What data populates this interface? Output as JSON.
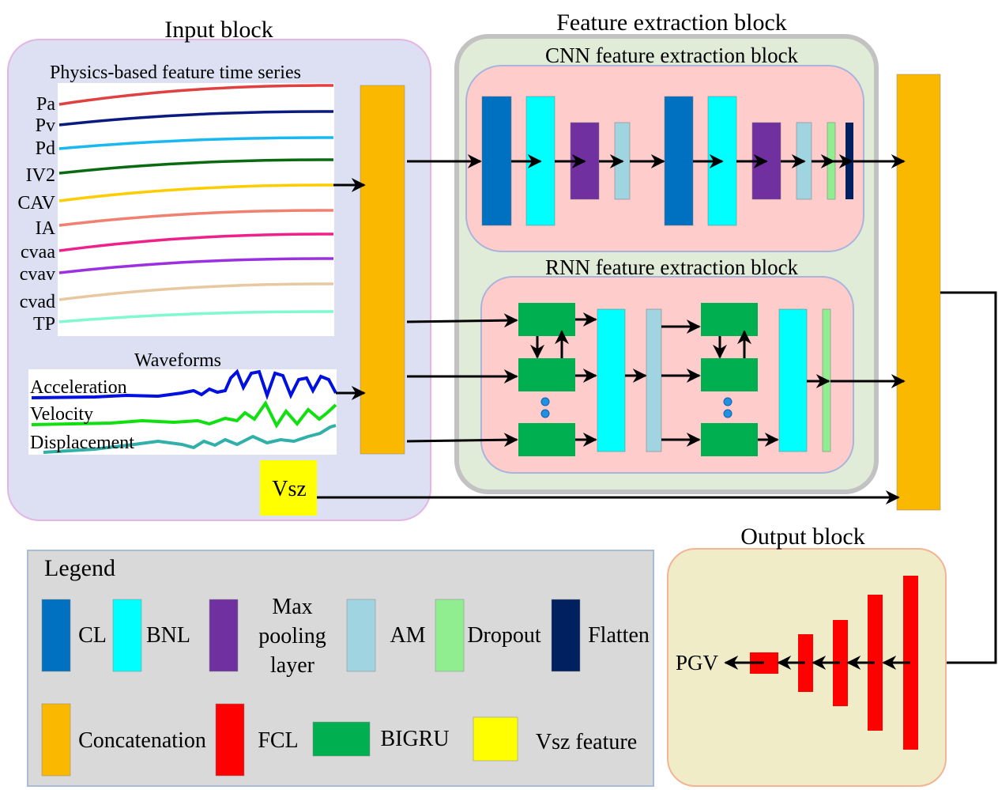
{
  "input_block": {
    "title": "Input block",
    "physics_title": "Physics-based feature time series",
    "features": [
      {
        "label": "Pa",
        "color": "#e04040"
      },
      {
        "label": "Pv",
        "color": "#0a1a80"
      },
      {
        "label": "Pd",
        "color": "#1ab8f0"
      },
      {
        "label": "IV2",
        "color": "#0a6a10"
      },
      {
        "label": "CAV",
        "color": "#ffcc00"
      },
      {
        "label": "IA",
        "color": "#f08070"
      },
      {
        "label": "cvaa",
        "color": "#f0208a"
      },
      {
        "label": "cvav",
        "color": "#9a30e0"
      },
      {
        "label": "cvad",
        "color": "#e8c8a0"
      },
      {
        "label": "TP",
        "color": "#80f8d0"
      }
    ],
    "waveforms_title": "Waveforms",
    "waveforms": [
      {
        "label": "Acceleration",
        "color": "#0010e0"
      },
      {
        "label": "Velocity",
        "color": "#10e010"
      },
      {
        "label": "Displacement",
        "color": "#30b0a8"
      }
    ],
    "vsz_label": "Vsz"
  },
  "feature_block": {
    "title": "Feature extraction block",
    "cnn_title": "CNN feature extraction block",
    "rnn_title": "RNN feature extraction block"
  },
  "output_block": {
    "title": "Output block",
    "output_label": "PGV"
  },
  "legend": {
    "title": "Legend",
    "items": [
      {
        "label": "CL",
        "color": "#0070c0"
      },
      {
        "label": "BNL",
        "color": "#00ffff"
      },
      {
        "label": "Max pooling layer",
        "lines": [
          "Max",
          "pooling",
          "layer"
        ],
        "color": "#7030a0"
      },
      {
        "label": "AM",
        "color": "#a0d4e0"
      },
      {
        "label": "Dropout",
        "color": "#90ee90"
      },
      {
        "label": "Flatten",
        "color": "#002060"
      },
      {
        "label": "Concatenation",
        "color": "#fbb800"
      },
      {
        "label": "FCL",
        "color": "#ff0000"
      },
      {
        "label": "BIGRU",
        "color": "#00b050"
      },
      {
        "label": "Vsz feature",
        "color": "#ffff00"
      }
    ]
  }
}
